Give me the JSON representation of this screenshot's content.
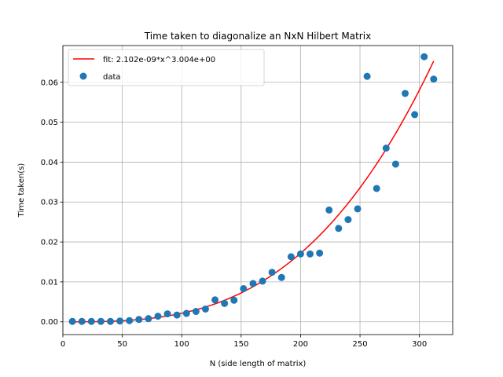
{
  "chart_data": {
    "type": "scatter",
    "title": "Time taken to diagonalize an NxN Hilbert Matrix",
    "xlabel": "N (side length of matrix)",
    "ylabel": "Time taken(s)",
    "xlim": [
      0,
      328
    ],
    "ylim": [
      -0.0032,
      0.0692
    ],
    "xticks": [
      0,
      50,
      100,
      150,
      200,
      250,
      300
    ],
    "yticks": [
      0.0,
      0.01,
      0.02,
      0.03,
      0.04,
      0.05,
      0.06
    ],
    "xtick_labels": [
      "0",
      "50",
      "100",
      "150",
      "200",
      "250",
      "300"
    ],
    "ytick_labels": [
      "0.00",
      "0.01",
      "0.02",
      "0.03",
      "0.04",
      "0.05",
      "0.06"
    ],
    "grid": true,
    "legend_position": "upper-left",
    "fit": {
      "label": "fit: 2.102e-09*x^3.004e+00",
      "a": 2.102e-09,
      "b": 3.004,
      "x_range": [
        8,
        312
      ],
      "color": "#ff0000"
    },
    "series": [
      {
        "name": "data",
        "color": "#1f77b4",
        "x": [
          8,
          16,
          24,
          32,
          40,
          48,
          56,
          64,
          72,
          80,
          88,
          96,
          104,
          112,
          120,
          128,
          136,
          144,
          152,
          160,
          168,
          176,
          184,
          192,
          200,
          208,
          216,
          224,
          232,
          240,
          248,
          256,
          264,
          272,
          280,
          288,
          296,
          304,
          312
        ],
        "y": [
          0.0001,
          0.0001,
          0.0001,
          0.0001,
          0.0001,
          0.0002,
          0.0003,
          0.0006,
          0.0008,
          0.0014,
          0.002,
          0.0017,
          0.0021,
          0.0026,
          0.0032,
          0.0055,
          0.0046,
          0.0054,
          0.0083,
          0.0096,
          0.0102,
          0.0124,
          0.0111,
          0.0163,
          0.017,
          0.017,
          0.0172,
          0.028,
          0.0234,
          0.0256,
          0.0283,
          0.0615,
          0.0334,
          0.0435,
          0.0395,
          0.0572,
          0.0519,
          0.0664,
          0.0608
        ]
      }
    ]
  }
}
